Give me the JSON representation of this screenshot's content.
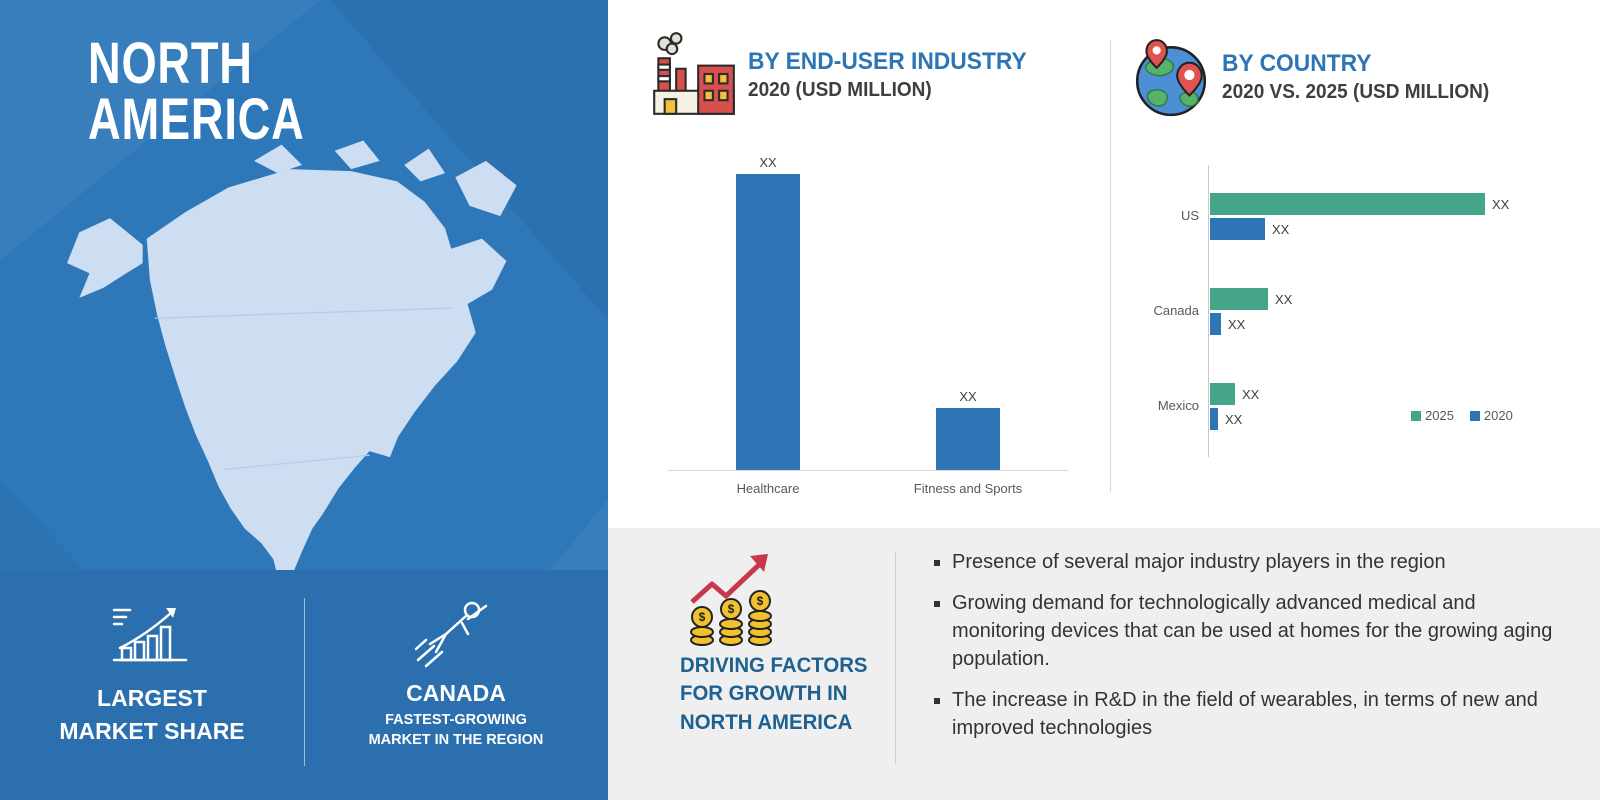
{
  "left_panel": {
    "title_line1": "NORTH",
    "title_line2": "AMERICA",
    "panel_color": "#2e78ba",
    "map_fill_color": "#cddef2",
    "stats": {
      "largest_line1": "LARGEST",
      "largest_line2": "MARKET SHARE",
      "canada_title": "CANADA",
      "canada_sub_line1": "FASTEST-GROWING",
      "canada_sub_line2": "MARKET IN THE REGION"
    }
  },
  "end_user_section": {
    "heading": "BY END-USER INDUSTRY",
    "subheading": "2020 (USD MILLION)"
  },
  "country_section": {
    "heading": "BY COUNTRY",
    "subheading": "2020 VS. 2025 (USD MILLION)"
  },
  "driving_section": {
    "title_line1": "DRIVING FACTORS",
    "title_line2": "FOR GROWTH IN",
    "title_line3": "NORTH AMERICA",
    "bullets": [
      "Presence of several major industry players in the region",
      "Growing demand for technologically advanced medical and monitoring devices that can be used at homes for the growing aging population.",
      "The increase in R&D in the field of wearables, in terms of new and improved technologies"
    ]
  },
  "chart_data": [
    {
      "type": "bar",
      "title": "BY END-USER INDUSTRY 2020 (USD MILLION)",
      "categories": [
        "Healthcare",
        "Fitness and Sports"
      ],
      "values": [
        "XX",
        "XX"
      ],
      "relative_heights": [
        100,
        21
      ],
      "bar_color": "#2e75b6",
      "xlabel": "",
      "ylabel": "",
      "grid": false,
      "note": "Values are masked as XX in the source infographic; relative_heights give approximate proportions"
    },
    {
      "type": "bar",
      "orientation": "horizontal",
      "title": "BY COUNTRY 2020 VS. 2025 (USD MILLION)",
      "categories": [
        "US",
        "Canada",
        "Mexico"
      ],
      "series": [
        {
          "name": "2025",
          "color": "#44a58b",
          "values": [
            "XX",
            "XX",
            "XX"
          ],
          "relative_lengths": [
            100,
            21,
            9
          ]
        },
        {
          "name": "2020",
          "color": "#2e75b6",
          "values": [
            "XX",
            "XX",
            "XX"
          ],
          "relative_lengths": [
            20,
            4,
            3
          ]
        }
      ],
      "legend_position": "bottom-right",
      "grid": false,
      "note": "Values are masked as XX in the source infographic; relative_lengths give approximate proportions"
    }
  ]
}
